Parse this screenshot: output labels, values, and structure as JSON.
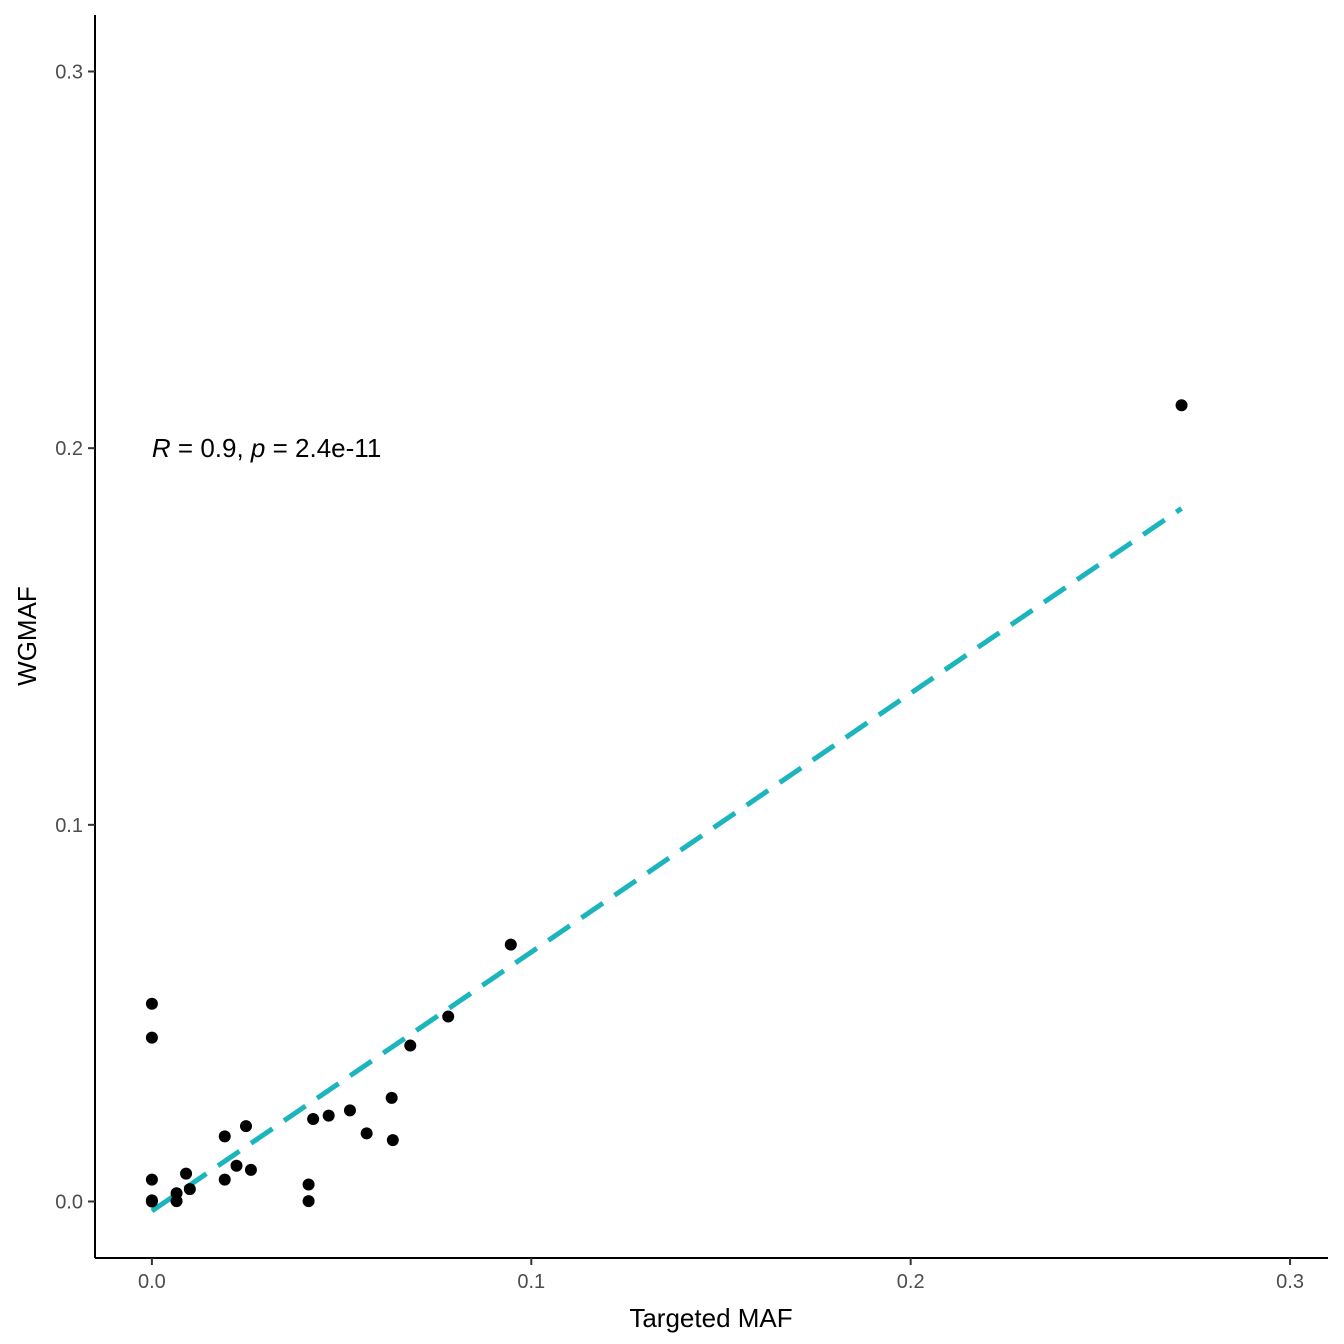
{
  "chart_data": {
    "type": "scatter",
    "xlabel": "Targeted MAF",
    "ylabel": "WGMAF",
    "xlim": [
      -0.015,
      0.31
    ],
    "ylim": [
      -0.015,
      0.315
    ],
    "x_ticks": [
      0.0,
      0.1,
      0.2,
      0.3
    ],
    "y_ticks": [
      0.0,
      0.1,
      0.2,
      0.3
    ],
    "x_tick_labels": [
      "0.0",
      "0.1",
      "0.2",
      "0.3"
    ],
    "y_tick_labels": [
      "0.0",
      "0.1",
      "0.2",
      "0.3"
    ],
    "grid": false,
    "annotation": {
      "r_symbol": "R",
      "r_value": " = 0.9, ",
      "p_symbol": "p",
      "p_value": " = 2.4e-11",
      "x": 0.0,
      "y": 0.2
    },
    "points": [
      {
        "x": 0.0,
        "y": 0.0525
      },
      {
        "x": 0.0,
        "y": 0.0435
      },
      {
        "x": 0.0,
        "y": 0.0058
      },
      {
        "x": 0.0,
        "y": 0.0003
      },
      {
        "x": 0.0,
        "y": 0.0
      },
      {
        "x": 0.0065,
        "y": 0.0022
      },
      {
        "x": 0.0065,
        "y": 0.0001
      },
      {
        "x": 0.009,
        "y": 0.0074
      },
      {
        "x": 0.01,
        "y": 0.0033
      },
      {
        "x": 0.0192,
        "y": 0.0173
      },
      {
        "x": 0.0192,
        "y": 0.0058
      },
      {
        "x": 0.0223,
        "y": 0.0095
      },
      {
        "x": 0.0248,
        "y": 0.02
      },
      {
        "x": 0.0261,
        "y": 0.0084
      },
      {
        "x": 0.0413,
        "y": 0.0045
      },
      {
        "x": 0.0413,
        "y": 0.0001
      },
      {
        "x": 0.0425,
        "y": 0.0219
      },
      {
        "x": 0.0466,
        "y": 0.0228
      },
      {
        "x": 0.0522,
        "y": 0.0242
      },
      {
        "x": 0.0566,
        "y": 0.0181
      },
      {
        "x": 0.0632,
        "y": 0.0275
      },
      {
        "x": 0.0635,
        "y": 0.0163
      },
      {
        "x": 0.0681,
        "y": 0.0414
      },
      {
        "x": 0.0781,
        "y": 0.0491
      },
      {
        "x": 0.0946,
        "y": 0.0682
      },
      {
        "x": 0.2714,
        "y": 0.2114
      }
    ],
    "regression": {
      "style": "dashed",
      "color": "#1cb5bd",
      "x": [
        0.0,
        0.2714
      ],
      "y": [
        -0.0025,
        0.184
      ]
    },
    "point_color": "#000000"
  }
}
